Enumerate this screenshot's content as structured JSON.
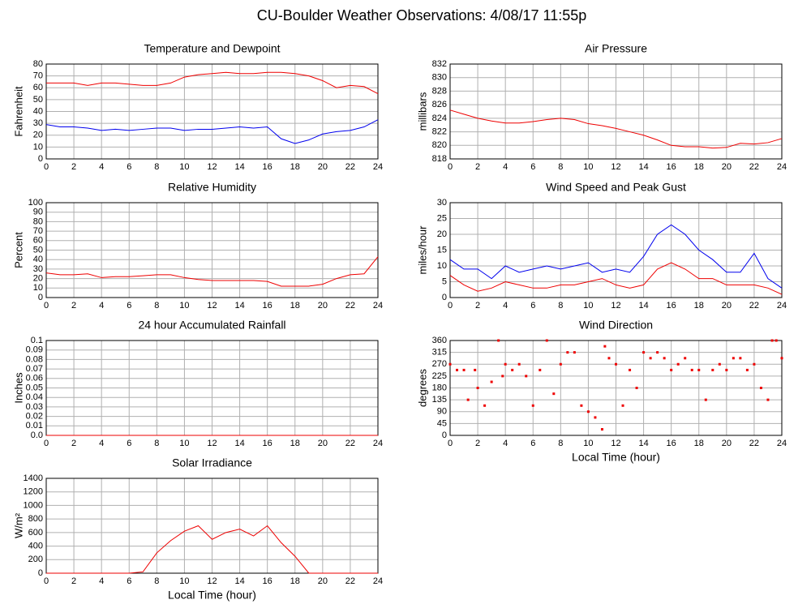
{
  "title": "CU-Boulder Weather Observations: 4/08/17 11:55p",
  "chart_data": [
    {
      "type": "line",
      "title": "Temperature and Dewpoint",
      "ylabel": "Fahrenheit",
      "x": [
        0,
        1,
        2,
        3,
        4,
        5,
        6,
        7,
        8,
        9,
        10,
        11,
        12,
        13,
        14,
        15,
        16,
        17,
        18,
        19,
        20,
        21,
        22,
        23,
        24
      ],
      "series": [
        {
          "name": "Temperature",
          "color": "#ee0000",
          "values": [
            64,
            64,
            64,
            62,
            64,
            64,
            63,
            62,
            62,
            64,
            69,
            71,
            72,
            73,
            72,
            72,
            73,
            73,
            72,
            70,
            66,
            60,
            62,
            61,
            55
          ]
        },
        {
          "name": "Dewpoint",
          "color": "#0000ee",
          "values": [
            29,
            27,
            27,
            26,
            24,
            25,
            24,
            25,
            26,
            26,
            24,
            25,
            25,
            26,
            27,
            26,
            27,
            17,
            13,
            16,
            21,
            23,
            24,
            27,
            33
          ]
        }
      ],
      "xlim": [
        0,
        24
      ],
      "xticks": [
        0,
        2,
        4,
        6,
        8,
        10,
        12,
        14,
        16,
        18,
        20,
        22,
        24
      ],
      "ylim": [
        0,
        80
      ],
      "yticks": [
        0,
        10,
        20,
        30,
        40,
        50,
        60,
        70,
        80
      ],
      "grid": true
    },
    {
      "type": "line",
      "title": "Air Pressure",
      "ylabel": "millibars",
      "x": [
        0,
        1,
        2,
        3,
        4,
        5,
        6,
        7,
        8,
        9,
        10,
        11,
        12,
        13,
        14,
        15,
        16,
        17,
        18,
        19,
        20,
        21,
        22,
        23,
        24
      ],
      "series": [
        {
          "name": "Pressure",
          "color": "#ee0000",
          "values": [
            825.2,
            824.6,
            824,
            823.6,
            823.3,
            823.3,
            823.5,
            823.8,
            824,
            823.8,
            823.2,
            822.9,
            822.5,
            822,
            821.5,
            820.8,
            820,
            819.8,
            819.8,
            819.6,
            819.7,
            820.3,
            820.2,
            820.4,
            821
          ]
        }
      ],
      "xlim": [
        0,
        24
      ],
      "xticks": [
        0,
        2,
        4,
        6,
        8,
        10,
        12,
        14,
        16,
        18,
        20,
        22,
        24
      ],
      "ylim": [
        818,
        832
      ],
      "yticks": [
        818,
        820,
        822,
        824,
        826,
        828,
        830,
        832
      ],
      "grid": true
    },
    {
      "type": "line",
      "title": "Relative Humidity",
      "ylabel": "Percent",
      "x": [
        0,
        1,
        2,
        3,
        4,
        5,
        6,
        7,
        8,
        9,
        10,
        11,
        12,
        13,
        14,
        15,
        16,
        17,
        18,
        19,
        20,
        21,
        22,
        23,
        24
      ],
      "series": [
        {
          "name": "Humidity",
          "color": "#ee0000",
          "values": [
            26,
            24,
            24,
            25,
            21,
            22,
            22,
            23,
            24,
            24,
            21,
            19,
            18,
            18,
            18,
            18,
            17,
            12,
            12,
            12,
            14,
            20,
            24,
            25,
            43
          ]
        }
      ],
      "xlim": [
        0,
        24
      ],
      "xticks": [
        0,
        2,
        4,
        6,
        8,
        10,
        12,
        14,
        16,
        18,
        20,
        22,
        24
      ],
      "ylim": [
        0,
        100
      ],
      "yticks": [
        0,
        10,
        20,
        30,
        40,
        50,
        60,
        70,
        80,
        90,
        100
      ],
      "grid": true
    },
    {
      "type": "line",
      "title": "Wind Speed and Peak Gust",
      "ylabel": "miles/hour",
      "x": [
        0,
        1,
        2,
        3,
        4,
        5,
        6,
        7,
        8,
        9,
        10,
        11,
        12,
        13,
        14,
        15,
        16,
        17,
        18,
        19,
        20,
        21,
        22,
        23,
        24
      ],
      "series": [
        {
          "name": "Peak Gust",
          "color": "#0000ee",
          "values": [
            12,
            9,
            9,
            6,
            10,
            8,
            9,
            10,
            9,
            10,
            11,
            8,
            9,
            8,
            13,
            20,
            23,
            20,
            15,
            12,
            8,
            8,
            14,
            6,
            3
          ]
        },
        {
          "name": "Wind Speed",
          "color": "#ee0000",
          "values": [
            7,
            4,
            2,
            3,
            5,
            4,
            3,
            3,
            4,
            4,
            5,
            6,
            4,
            3,
            4,
            9,
            11,
            9,
            6,
            6,
            4,
            4,
            4,
            3,
            1
          ]
        }
      ],
      "xlim": [
        0,
        24
      ],
      "xticks": [
        0,
        2,
        4,
        6,
        8,
        10,
        12,
        14,
        16,
        18,
        20,
        22,
        24
      ],
      "ylim": [
        0,
        30
      ],
      "yticks": [
        0,
        5,
        10,
        15,
        20,
        25,
        30
      ],
      "grid": true
    },
    {
      "type": "line",
      "title": "24 hour Accumulated Rainfall",
      "ylabel": "Inches",
      "x": [
        0,
        1,
        2,
        3,
        4,
        5,
        6,
        7,
        8,
        9,
        10,
        11,
        12,
        13,
        14,
        15,
        16,
        17,
        18,
        19,
        20,
        21,
        22,
        23,
        24
      ],
      "series": [
        {
          "name": "Rainfall",
          "color": "#ee0000",
          "values": [
            0,
            0,
            0,
            0,
            0,
            0,
            0,
            0,
            0,
            0,
            0,
            0,
            0,
            0,
            0,
            0,
            0,
            0,
            0,
            0,
            0,
            0,
            0,
            0,
            0
          ]
        }
      ],
      "xlim": [
        0,
        24
      ],
      "xticks": [
        0,
        2,
        4,
        6,
        8,
        10,
        12,
        14,
        16,
        18,
        20,
        22,
        24
      ],
      "ylim": [
        0,
        0.1
      ],
      "yticks": [
        {
          "value": 0,
          "label": "0.0"
        },
        0.01,
        0.02,
        0.03,
        0.04,
        0.05,
        0.06,
        0.07,
        0.08,
        0.09,
        0.1
      ],
      "grid": true
    },
    {
      "type": "scatter",
      "title": "Wind Direction",
      "ylabel": "degrees",
      "xlabel": "Local Time (hour)",
      "x": [
        0,
        0.5,
        1,
        1.3,
        1.8,
        2,
        2.5,
        3,
        3.5,
        3.8,
        4,
        4.5,
        5,
        5.5,
        6,
        6.5,
        7,
        7.5,
        8,
        8.5,
        9,
        9.5,
        10,
        10.5,
        11,
        11.2,
        11.5,
        12,
        12.5,
        13,
        13.5,
        14,
        14.5,
        15,
        15.5,
        16,
        16.5,
        17,
        17.5,
        18,
        18.5,
        19,
        19.5,
        20,
        20.5,
        21,
        21.5,
        22,
        22.5,
        23,
        23.3,
        23.6,
        24
      ],
      "series": [
        {
          "name": "Direction",
          "color": "#ee0000",
          "values": [
            270,
            248,
            248,
            135,
            248,
            180,
            113,
            203,
            360,
            225,
            270,
            248,
            270,
            225,
            113,
            248,
            360,
            158,
            270,
            315,
            315,
            113,
            90,
            68,
            23,
            338,
            293,
            270,
            113,
            248,
            180,
            315,
            293,
            315,
            293,
            248,
            270,
            293,
            248,
            248,
            135,
            248,
            270,
            248,
            293,
            293,
            248,
            270,
            180,
            135,
            360,
            360,
            293
          ]
        }
      ],
      "xlim": [
        0,
        24
      ],
      "xticks": [
        0,
        2,
        4,
        6,
        8,
        10,
        12,
        14,
        16,
        18,
        20,
        22,
        24
      ],
      "ylim": [
        0,
        360
      ],
      "yticks": [
        0,
        45,
        90,
        135,
        180,
        225,
        270,
        315,
        360
      ],
      "grid": true
    },
    {
      "type": "line",
      "title": "Solar Irradiance",
      "ylabel": "W/m²",
      "xlabel": "Local Time (hour)",
      "x": [
        0,
        1,
        2,
        3,
        4,
        5,
        6,
        7,
        8,
        9,
        10,
        11,
        12,
        13,
        14,
        15,
        16,
        17,
        18,
        19,
        20,
        21,
        22,
        23,
        24
      ],
      "series": [
        {
          "name": "Irradiance",
          "color": "#ee0000",
          "values": [
            0,
            0,
            0,
            0,
            0,
            0,
            0,
            20,
            300,
            480,
            620,
            700,
            500,
            600,
            650,
            550,
            700,
            450,
            250,
            0,
            0,
            0,
            0,
            0,
            0
          ]
        }
      ],
      "xlim": [
        0,
        24
      ],
      "xticks": [
        0,
        2,
        4,
        6,
        8,
        10,
        12,
        14,
        16,
        18,
        20,
        22,
        24
      ],
      "ylim": [
        0,
        1400
      ],
      "yticks": [
        0,
        200,
        400,
        600,
        800,
        1000,
        1200,
        1400
      ],
      "grid": true
    }
  ]
}
